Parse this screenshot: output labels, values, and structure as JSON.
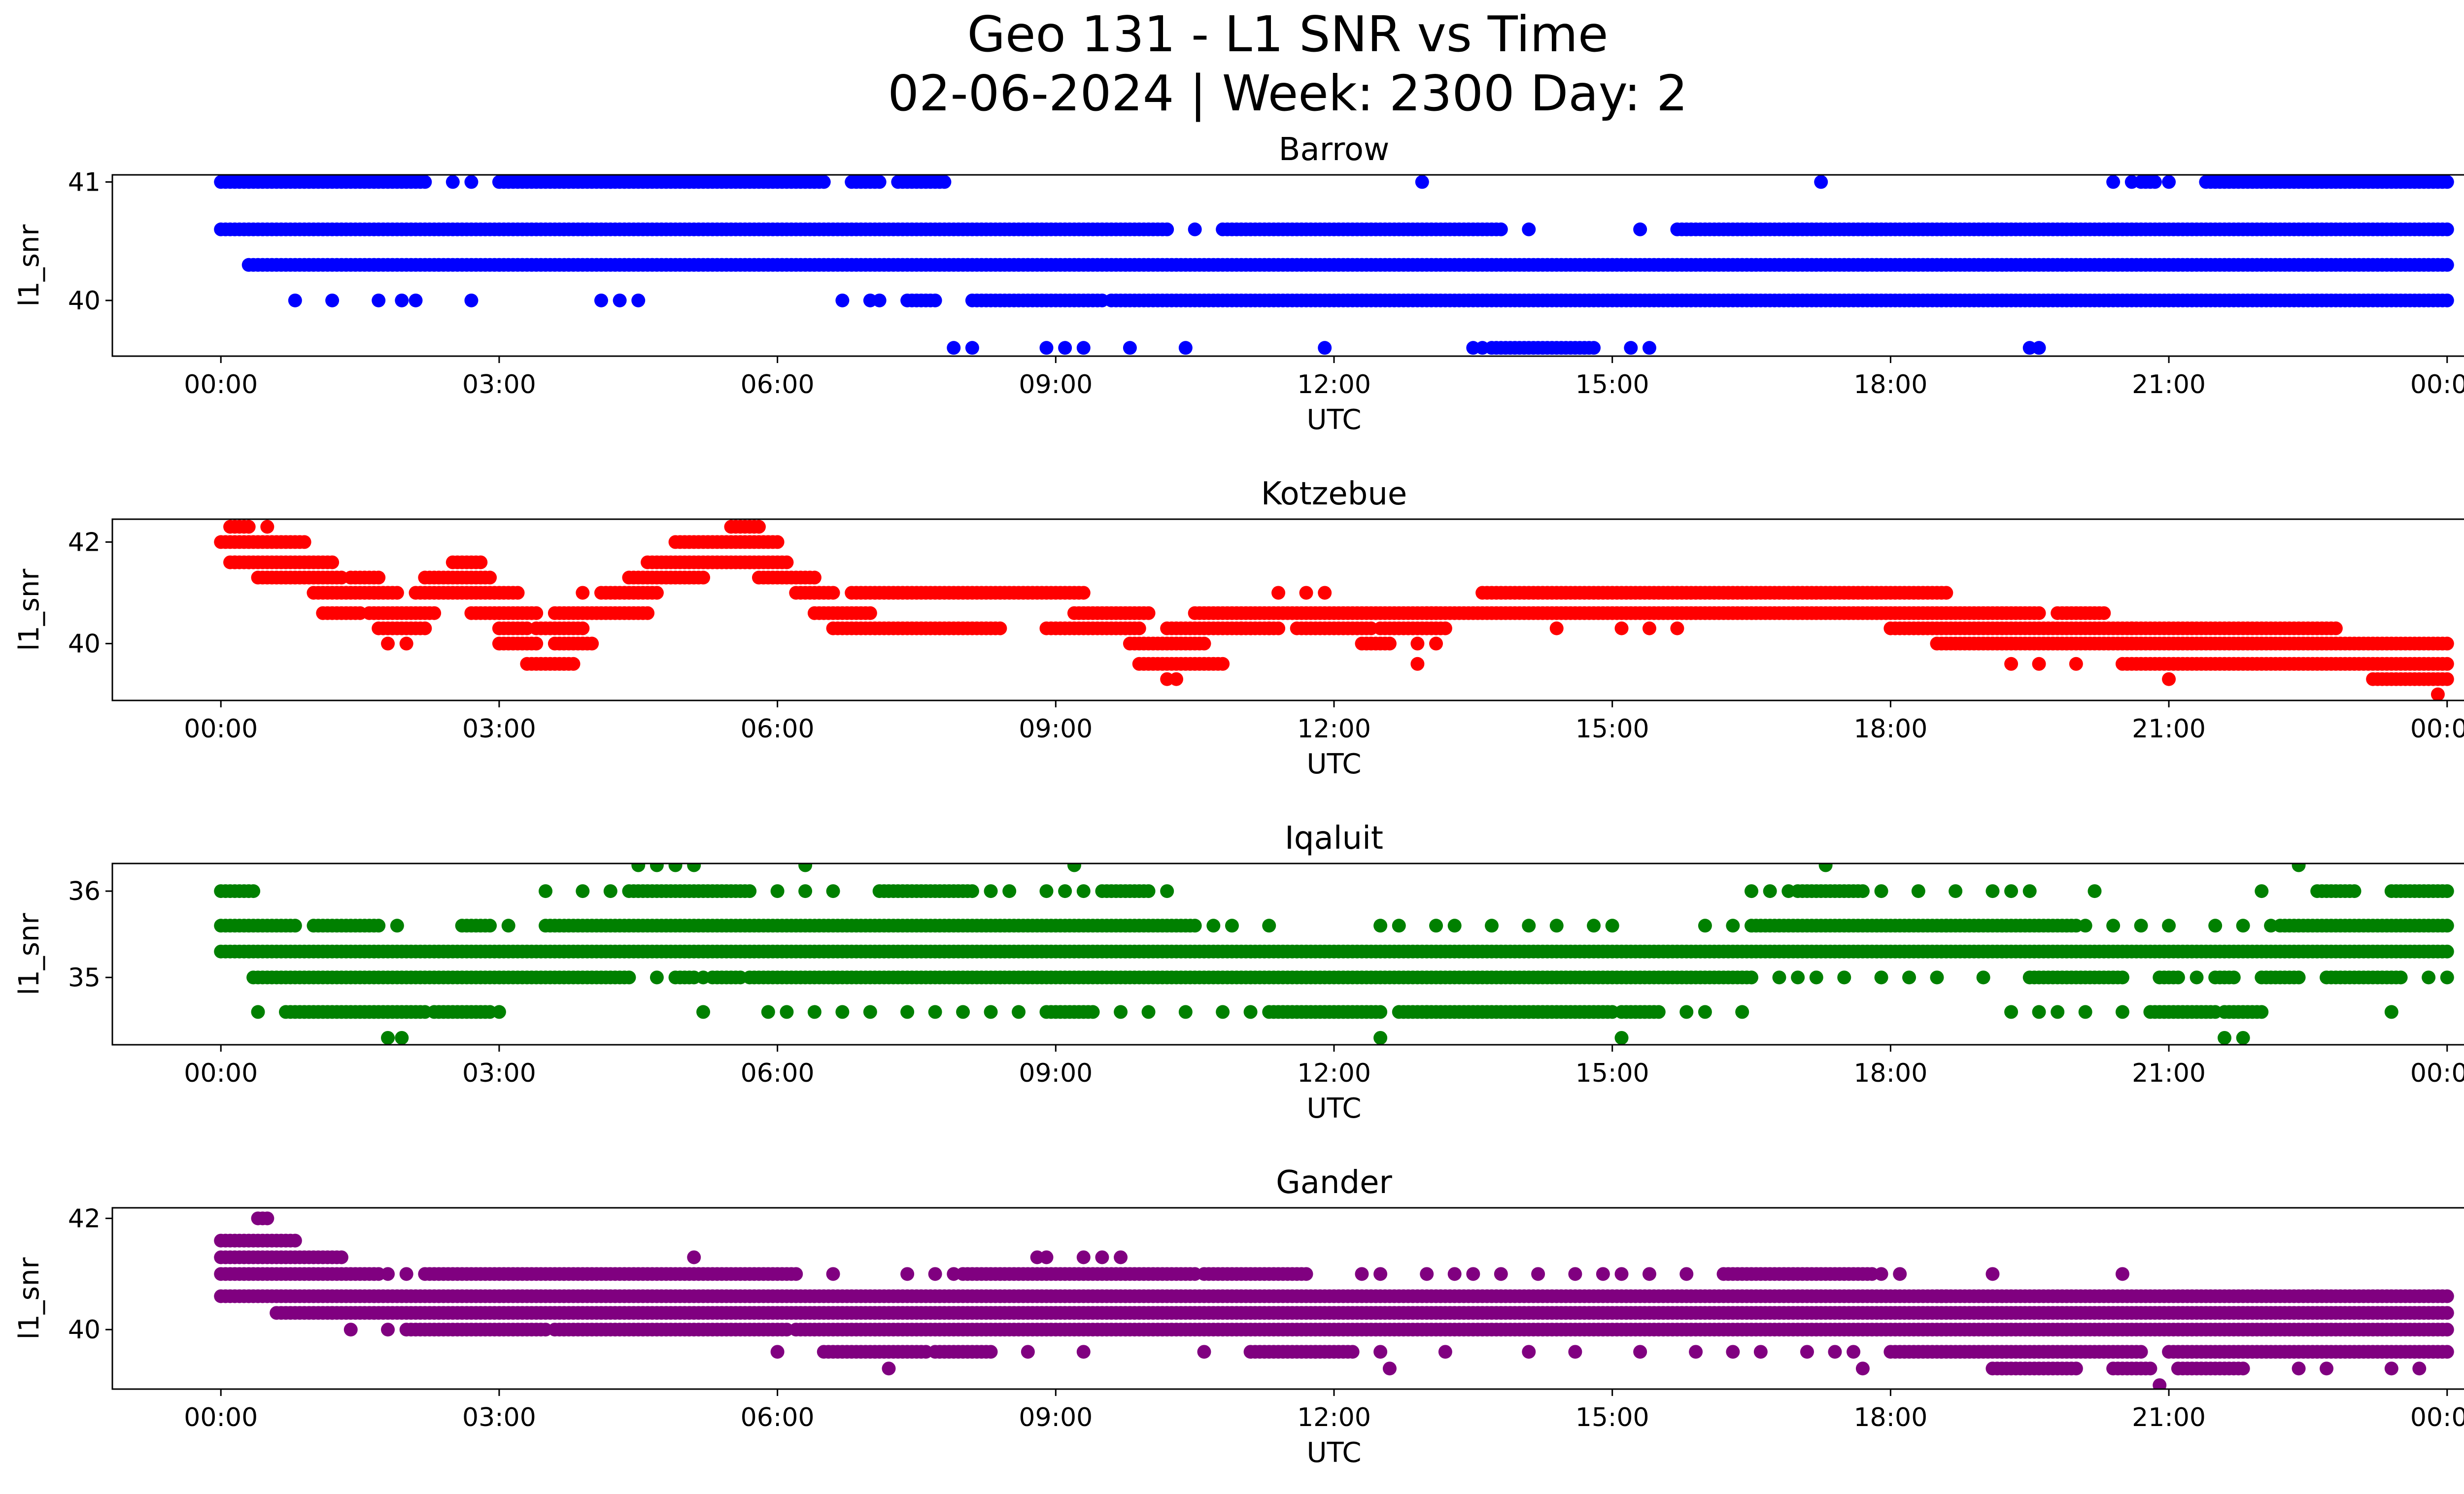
{
  "figure": {
    "title_line1": "Geo 131 - L1 SNR vs Time",
    "title_line2": "02-06-2024 | Week: 2300 Day: 2"
  },
  "chart_data": [
    {
      "type": "scatter",
      "title": "Barrow",
      "xlabel": "UTC",
      "ylabel": "l1_snr",
      "color": "#0000ff",
      "xlim_hours": [
        -1.17,
        25.17
      ],
      "xticks": [
        "00:00",
        "03:00",
        "06:00",
        "09:00",
        "12:00",
        "15:00",
        "18:00",
        "21:00",
        "00:00"
      ],
      "ylim": [
        39.53,
        41.06
      ],
      "yticks": [
        40,
        41
      ],
      "levels": [
        {
          "y": 41.0,
          "segments": [
            [
              0.0,
              2.2
            ],
            [
              3.0,
              6.5
            ],
            [
              6.8,
              7.1
            ],
            [
              7.3,
              7.8
            ]
          ],
          "scattered": [
            2.5,
            2.7,
            4.2,
            12.95,
            17.25,
            20.4,
            20.6,
            21.0
          ]
        },
        {
          "y": 41.0,
          "segments": [
            [
              20.7,
              20.85
            ],
            [
              21.4,
              24.0
            ]
          ],
          "scattered": []
        },
        {
          "y": 40.6,
          "segments": [
            [
              0.0,
              10.2
            ],
            [
              10.8,
              13.8
            ],
            [
              15.7,
              24.0
            ]
          ],
          "scattered": [
            10.5,
            14.1,
            15.3
          ]
        },
        {
          "y": 40.3,
          "segments": [
            [
              0.3,
              24.0
            ]
          ],
          "scattered": []
        },
        {
          "y": 40.0,
          "segments": [
            [
              7.4,
              7.7
            ],
            [
              8.1,
              9.5
            ],
            [
              9.6,
              24.0
            ]
          ],
          "scattered": [
            0.8,
            1.2,
            1.7,
            1.95,
            2.1,
            2.7,
            4.1,
            4.3,
            4.5,
            6.7,
            7.0,
            7.1
          ]
        },
        {
          "y": 39.6,
          "segments": [
            [
              13.7,
              14.8
            ]
          ],
          "scattered": [
            7.9,
            8.1,
            8.9,
            9.1,
            9.3,
            9.8,
            10.4,
            11.9,
            13.5,
            13.6,
            15.2,
            15.4,
            19.5,
            19.6
          ]
        }
      ]
    },
    {
      "type": "scatter",
      "title": "Kotzebue",
      "xlabel": "UTC",
      "ylabel": "l1_snr",
      "color": "#ff0000",
      "xlim_hours": [
        -1.17,
        25.17
      ],
      "xticks": [
        "00:00",
        "03:00",
        "06:00",
        "09:00",
        "12:00",
        "15:00",
        "18:00",
        "21:00",
        "00:00"
      ],
      "ylim": [
        38.88,
        42.45
      ],
      "yticks": [
        40,
        42
      ],
      "levels": [
        {
          "y": 42.3,
          "segments": [
            [
              0.1,
              0.3
            ],
            [
              5.5,
              5.8
            ]
          ],
          "scattered": [
            0.5
          ]
        },
        {
          "y": 42.0,
          "segments": [
            [
              0.0,
              0.9
            ],
            [
              4.9,
              6.0
            ]
          ],
          "scattered": []
        },
        {
          "y": 41.6,
          "segments": [
            [
              0.1,
              1.2
            ],
            [
              4.6,
              6.1
            ],
            [
              2.5,
              2.8
            ]
          ],
          "scattered": [
            0.15
          ]
        },
        {
          "y": 41.3,
          "segments": [
            [
              0.4,
              1.3
            ],
            [
              1.4,
              1.7
            ],
            [
              2.2,
              2.9
            ],
            [
              4.4,
              5.2
            ],
            [
              5.8,
              6.4
            ]
          ],
          "scattered": []
        },
        {
          "y": 41.0,
          "segments": [
            [
              1.0,
              1.9
            ],
            [
              2.1,
              3.2
            ],
            [
              4.1,
              4.7
            ],
            [
              6.2,
              6.6
            ],
            [
              6.8,
              9.3
            ],
            [
              13.6,
              18.6
            ]
          ],
          "scattered": [
            3.9,
            11.4,
            11.7,
            11.9
          ]
        },
        {
          "y": 40.6,
          "segments": [
            [
              1.1,
              1.5
            ],
            [
              1.6,
              2.3
            ],
            [
              2.7,
              3.4
            ],
            [
              3.6,
              4.6
            ],
            [
              6.4,
              7.0
            ],
            [
              9.2,
              10.0
            ],
            [
              10.5,
              13.1
            ],
            [
              13.0,
              19.6
            ],
            [
              19.8,
              20.3
            ]
          ],
          "scattered": []
        },
        {
          "y": 40.3,
          "segments": [
            [
              1.7,
              2.2
            ],
            [
              3.0,
              3.3
            ],
            [
              3.4,
              3.9
            ],
            [
              6.6,
              8.4
            ],
            [
              8.9,
              9.9
            ],
            [
              10.2,
              11.4
            ],
            [
              11.6,
              12.4
            ],
            [
              12.5,
              13.2
            ],
            [
              18.0,
              20.6
            ],
            [
              20.6,
              22.8
            ]
          ],
          "scattered": [
            14.4,
            15.1,
            15.4,
            15.7,
            11.3,
            11.0
          ]
        },
        {
          "y": 40.0,
          "segments": [
            [
              3.0,
              3.4
            ],
            [
              3.6,
              4.0
            ],
            [
              9.8,
              10.6
            ],
            [
              12.3,
              12.6
            ],
            [
              18.5,
              24.0
            ]
          ],
          "scattered": [
            2.0,
            1.8,
            12.9,
            13.1
          ]
        },
        {
          "y": 39.6,
          "segments": [
            [
              3.3,
              3.8
            ],
            [
              9.9,
              10.8
            ],
            [
              20.5,
              24.0
            ]
          ],
          "scattered": [
            19.3,
            19.6,
            20.0,
            12.9
          ]
        },
        {
          "y": 39.3,
          "segments": [
            [
              23.2,
              24.0
            ]
          ],
          "scattered": [
            10.2,
            10.3,
            21.0
          ]
        },
        {
          "y": 39.0,
          "segments": [],
          "scattered": [
            23.9
          ]
        }
      ]
    },
    {
      "type": "scatter",
      "title": "Iqaluit",
      "xlabel": "UTC",
      "ylabel": "l1_snr",
      "color": "#008000",
      "xlim_hours": [
        -1.17,
        25.17
      ],
      "xticks": [
        "00:00",
        "03:00",
        "06:00",
        "09:00",
        "12:00",
        "15:00",
        "18:00",
        "21:00",
        "00:00"
      ],
      "ylim": [
        34.22,
        36.32
      ],
      "yticks": [
        35,
        36
      ],
      "levels": [
        {
          "y": 36.3,
          "segments": [],
          "scattered": [
            4.5,
            4.7,
            4.9,
            5.1,
            6.3,
            9.2,
            17.3,
            22.4
          ]
        },
        {
          "y": 36.0,
          "segments": [
            [
              0.0,
              0.35
            ],
            [
              4.4,
              5.7
            ],
            [
              7.1,
              8.1
            ],
            [
              9.5,
              10.0
            ],
            [
              17.0,
              17.7
            ],
            [
              22.6,
              23.0
            ],
            [
              23.4,
              24.0
            ]
          ],
          "scattered": [
            3.5,
            3.9,
            4.2,
            6.0,
            6.3,
            6.6,
            8.3,
            8.5,
            8.9,
            9.1,
            9.3,
            10.2,
            16.5,
            16.7,
            16.9,
            17.9,
            18.3,
            18.7,
            19.1,
            19.3,
            19.5,
            20.2,
            22.0
          ]
        },
        {
          "y": 35.6,
          "segments": [
            [
              0.0,
              0.8
            ],
            [
              1.0,
              1.7
            ],
            [
              2.6,
              2.9
            ],
            [
              3.5,
              10.5
            ],
            [
              16.5,
              18.6
            ],
            [
              18.6,
              20.0
            ],
            [
              22.2,
              24.0
            ]
          ],
          "scattered": [
            1.9,
            3.1,
            10.7,
            10.9,
            11.3,
            12.5,
            12.7,
            13.1,
            13.3,
            13.7,
            14.1,
            14.4,
            14.8,
            15.0,
            16.0,
            16.3,
            20.1,
            20.4,
            20.7,
            21.0,
            21.5,
            21.8,
            22.1
          ]
        },
        {
          "y": 35.3,
          "segments": [
            [
              0.0,
              24.0
            ]
          ],
          "scattered": []
        },
        {
          "y": 35.0,
          "segments": [
            [
              0.35,
              4.4
            ],
            [
              4.9,
              5.1
            ],
            [
              5.3,
              5.6
            ],
            [
              5.7,
              6.6
            ],
            [
              6.6,
              16.5
            ],
            [
              19.5,
              20.5
            ],
            [
              20.9,
              21.1
            ],
            [
              21.5,
              21.7
            ],
            [
              22.0,
              22.4
            ],
            [
              22.7,
              23.5
            ]
          ],
          "scattered": [
            4.7,
            5.2,
            16.8,
            17.0,
            17.2,
            17.5,
            17.9,
            18.2,
            18.5,
            19.0,
            21.3,
            23.8,
            24.0
          ]
        },
        {
          "y": 34.6,
          "segments": [
            [
              0.7,
              2.2
            ],
            [
              2.3,
              2.9
            ],
            [
              8.9,
              9.4
            ],
            [
              11.3,
              12.5
            ],
            [
              12.7,
              13.0
            ],
            [
              13.0,
              15.0
            ],
            [
              15.1,
              15.5
            ],
            [
              20.8,
              21.5
            ],
            [
              21.6,
              22.0
            ]
          ],
          "scattered": [
            0.4,
            3.0,
            5.2,
            5.9,
            6.1,
            6.4,
            6.7,
            7.0,
            7.4,
            7.7,
            8.0,
            8.3,
            8.6,
            9.7,
            10.0,
            10.4,
            10.8,
            11.1,
            15.8,
            16.0,
            16.4,
            19.3,
            19.6,
            19.8,
            20.1,
            20.5,
            23.4
          ]
        },
        {
          "y": 34.3,
          "segments": [],
          "scattered": [
            1.8,
            1.95,
            12.5,
            15.1,
            21.6,
            21.8
          ]
        }
      ]
    },
    {
      "type": "scatter",
      "title": "Gander",
      "xlabel": "UTC",
      "ylabel": "l1_snr",
      "color": "#800080",
      "xlim_hours": [
        -1.17,
        25.17
      ],
      "xticks": [
        "00:00",
        "03:00",
        "06:00",
        "09:00",
        "12:00",
        "15:00",
        "18:00",
        "21:00",
        "00:00"
      ],
      "ylim": [
        38.93,
        42.19
      ],
      "yticks": [
        40,
        42
      ],
      "levels": [
        {
          "y": 42.0,
          "segments": [
            [
              0.4,
              0.5
            ]
          ],
          "scattered": []
        },
        {
          "y": 41.6,
          "segments": [
            [
              0.0,
              0.8
            ]
          ],
          "scattered": []
        },
        {
          "y": 41.3,
          "segments": [
            [
              0.0,
              1.3
            ]
          ],
          "scattered": [
            5.1,
            8.8,
            8.9,
            9.3,
            9.5,
            9.7
          ]
        },
        {
          "y": 41.0,
          "segments": [
            [
              0.0,
              1.7
            ],
            [
              2.2,
              6.2
            ],
            [
              8.0,
              10.5
            ],
            [
              10.6,
              11.7
            ],
            [
              16.2,
              17.8
            ]
          ],
          "scattered": [
            1.8,
            2.0,
            6.6,
            7.4,
            7.7,
            7.9,
            12.3,
            12.5,
            13.0,
            13.3,
            13.5,
            13.8,
            14.2,
            14.6,
            14.9,
            15.1,
            15.4,
            15.8,
            17.9,
            18.1,
            19.1,
            20.5
          ]
        },
        {
          "y": 40.6,
          "segments": [
            [
              0.0,
              18.6
            ],
            [
              18.5,
              24.0
            ]
          ],
          "scattered": []
        },
        {
          "y": 40.3,
          "segments": [
            [
              0.6,
              24.0
            ]
          ],
          "scattered": [
            1.2
          ]
        },
        {
          "y": 40.0,
          "segments": [
            [
              2.0,
              3.5
            ],
            [
              3.6,
              6.1
            ],
            [
              6.2,
              24.0
            ]
          ],
          "scattered": [
            1.4,
            1.8
          ]
        },
        {
          "y": 39.6,
          "segments": [
            [
              6.5,
              7.6
            ],
            [
              7.7,
              8.3
            ],
            [
              11.1,
              12.2
            ],
            [
              18.0,
              20.7
            ],
            [
              21.0,
              24.0
            ]
          ],
          "scattered": [
            6.0,
            8.7,
            9.3,
            10.6,
            11.8,
            12.5,
            13.2,
            14.1,
            14.6,
            15.3,
            15.9,
            16.3,
            16.6,
            17.1,
            17.4,
            17.6
          ]
        },
        {
          "y": 39.3,
          "segments": [
            [
              19.1,
              20.0
            ],
            [
              20.4,
              20.8
            ],
            [
              21.1,
              21.8
            ]
          ],
          "scattered": [
            7.2,
            12.6,
            17.7,
            22.4,
            22.7,
            23.4,
            23.7
          ]
        },
        {
          "y": 39.0,
          "segments": [],
          "scattered": [
            20.9
          ]
        }
      ]
    }
  ]
}
